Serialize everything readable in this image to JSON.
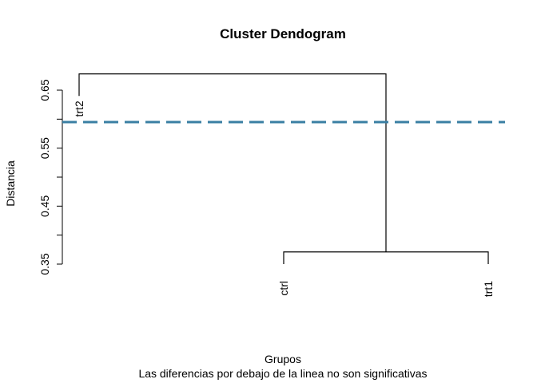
{
  "chart_data": {
    "type": "dendrogram",
    "title": "Cluster Dendogram",
    "xlabel": "Grupos",
    "subtitle": "Las diferencias por debajo de la linea no son significativas",
    "ylabel": "Distancia",
    "ylim": [
      0.35,
      0.68
    ],
    "yticks": [
      0.35,
      0.4,
      0.45,
      0.5,
      0.55,
      0.6,
      0.65
    ],
    "ytick_labels": [
      "0.35",
      "",
      "0.45",
      "",
      "0.55",
      "",
      "0.65"
    ],
    "leaves": [
      {
        "label": "trt2",
        "order": 1,
        "height": 0.64
      },
      {
        "label": "ctrl",
        "order": 2,
        "height": 0.35
      },
      {
        "label": "trt1",
        "order": 3,
        "height": 0.35
      }
    ],
    "merges": [
      {
        "left": "ctrl",
        "right": "trt1",
        "height": 0.371
      },
      {
        "left": "trt2",
        "right": "ctrl+trt1",
        "height": 0.678
      }
    ],
    "threshold": {
      "value": 0.595,
      "color": "#3a7fa3",
      "style": "dashed"
    }
  }
}
